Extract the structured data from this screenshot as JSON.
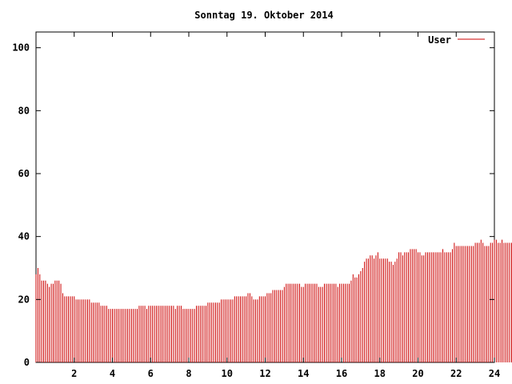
{
  "chart_data": {
    "type": "bar",
    "title": "Sonntag 19. Oktober 2014",
    "xlabel": "",
    "ylabel": "",
    "xlim": [
      0,
      24
    ],
    "ylim": [
      0,
      105
    ],
    "x_ticks": [
      2,
      4,
      6,
      8,
      10,
      12,
      14,
      16,
      18,
      20,
      22,
      24
    ],
    "y_ticks": [
      0,
      20,
      40,
      60,
      80,
      100
    ],
    "grid": false,
    "legend_position": "top-right",
    "series": [
      {
        "name": "User",
        "color": "#cc0000",
        "x_start": 0,
        "x_step": 0.1,
        "values": [
          28,
          30,
          28,
          26,
          26,
          26,
          25,
          24,
          25,
          25,
          26,
          26,
          26,
          25,
          22,
          21,
          21,
          21,
          21,
          21,
          21,
          20,
          20,
          20,
          20,
          20,
          20,
          20,
          20,
          19,
          19,
          19,
          19,
          19,
          18,
          18,
          18,
          18,
          17,
          17,
          17,
          17,
          17,
          17,
          17,
          17,
          17,
          17,
          17,
          17,
          17,
          17,
          17,
          17,
          18,
          18,
          18,
          18,
          17,
          18,
          18,
          18,
          18,
          18,
          18,
          18,
          18,
          18,
          18,
          18,
          18,
          18,
          18,
          17,
          18,
          18,
          18,
          17,
          17,
          17,
          17,
          17,
          17,
          17,
          18,
          18,
          18,
          18,
          18,
          18,
          19,
          19,
          19,
          19,
          19,
          19,
          19,
          20,
          20,
          20,
          20,
          20,
          20,
          20,
          21,
          21,
          21,
          21,
          21,
          21,
          21,
          22,
          22,
          21,
          20,
          20,
          20,
          21,
          21,
          21,
          21,
          22,
          22,
          22,
          23,
          23,
          23,
          23,
          23,
          23,
          24,
          25,
          25,
          25,
          25,
          25,
          25,
          25,
          25,
          24,
          24,
          25,
          25,
          25,
          25,
          25,
          25,
          25,
          24,
          24,
          24,
          25,
          25,
          25,
          25,
          25,
          25,
          25,
          24,
          25,
          25,
          25,
          25,
          25,
          25,
          26,
          28,
          27,
          27,
          28,
          29,
          30,
          32,
          33,
          33,
          34,
          34,
          33,
          34,
          35,
          33,
          33,
          33,
          33,
          33,
          32,
          32,
          31,
          32,
          33,
          35,
          35,
          34,
          35,
          35,
          35,
          36,
          36,
          36,
          36,
          35,
          35,
          34,
          34,
          35,
          35,
          35,
          35,
          35,
          35,
          35,
          35,
          35,
          36,
          35,
          35,
          35,
          35,
          36,
          38,
          37,
          37,
          37,
          37,
          37,
          37,
          37,
          37,
          37,
          37,
          38,
          38,
          38,
          39,
          38,
          37,
          37,
          37,
          38,
          38,
          39,
          39,
          38,
          38,
          39,
          38,
          38,
          38,
          38,
          38,
          37,
          37,
          37,
          37,
          36,
          36,
          35,
          35,
          34,
          33,
          33,
          33,
          33,
          34,
          35,
          36,
          37,
          38,
          39,
          40,
          41,
          40,
          40,
          40,
          39,
          40,
          40,
          39,
          38,
          38,
          38,
          38,
          38,
          37,
          37,
          37,
          37,
          37,
          36,
          36,
          36,
          38,
          38,
          37,
          37,
          38,
          38,
          37,
          37,
          38,
          38,
          37,
          37,
          36,
          36,
          36,
          36,
          36,
          36,
          36,
          36,
          37,
          34,
          33,
          33,
          33,
          33,
          33,
          33,
          34,
          35,
          36,
          36,
          35,
          36,
          35,
          37,
          35,
          34,
          33,
          33,
          33,
          33,
          33,
          33,
          33,
          32,
          32,
          32,
          32,
          32,
          32,
          32,
          32,
          32,
          32,
          32,
          32,
          32,
          32,
          32,
          31
        ]
      }
    ]
  }
}
